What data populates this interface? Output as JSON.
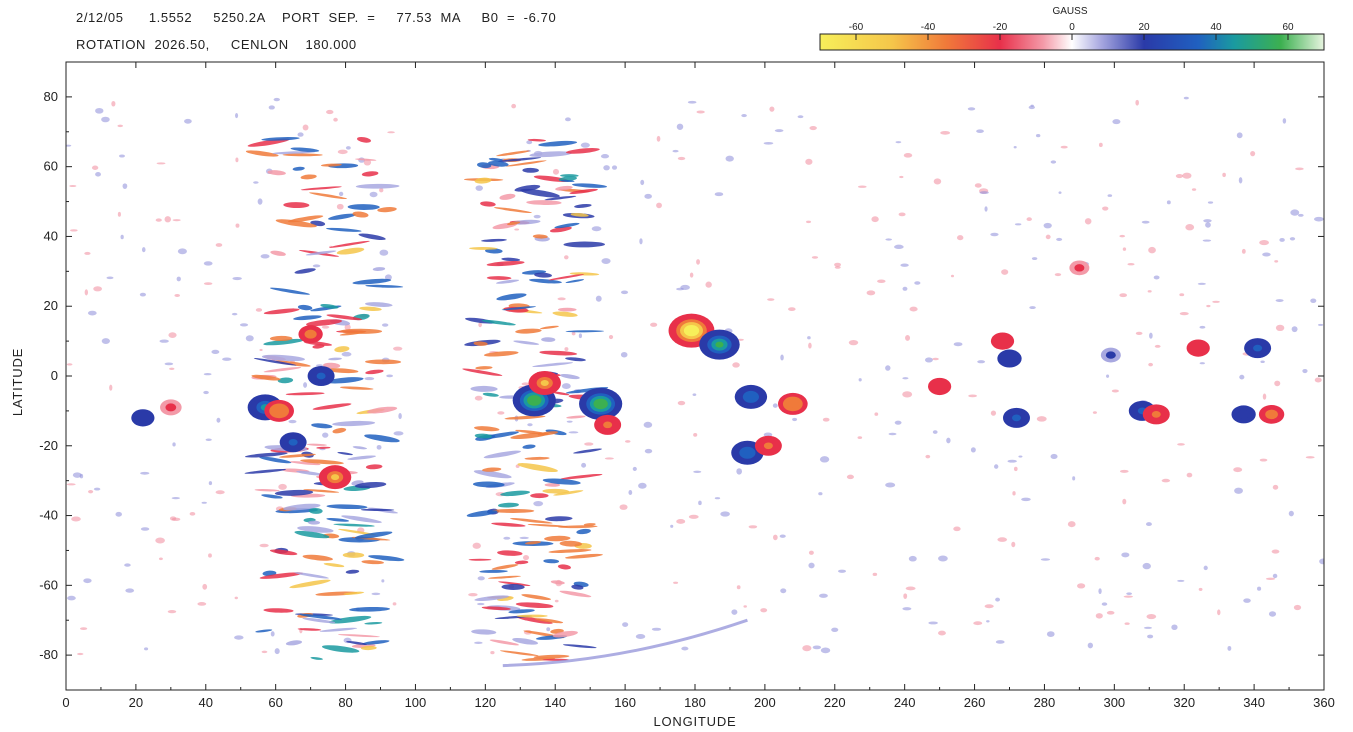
{
  "header": {
    "line1": "2/12/05      1.5552     5250.2A    PORT  SEP.  =     77.53  MA     B0  =  -6.70",
    "line2": "ROTATION  2026.50,     CENLON    180.000"
  },
  "colorbar": {
    "title": "GAUSS",
    "ticks": [
      -60,
      -40,
      -20,
      0,
      20,
      40,
      60
    ],
    "range": [
      -70,
      70
    ],
    "stops": [
      {
        "value": -70,
        "color": "#f7ef5a"
      },
      {
        "value": -50,
        "color": "#f5c64a"
      },
      {
        "value": -35,
        "color": "#f07a3a"
      },
      {
        "value": -20,
        "color": "#e8304a"
      },
      {
        "value": -8,
        "color": "#f39aa8"
      },
      {
        "value": 0,
        "color": "#ffffff"
      },
      {
        "value": 8,
        "color": "#a8a8e0"
      },
      {
        "value": 20,
        "color": "#2a3aa8"
      },
      {
        "value": 35,
        "color": "#2060c0"
      },
      {
        "value": 45,
        "color": "#1a9aa0"
      },
      {
        "value": 58,
        "color": "#3cb050"
      },
      {
        "value": 70,
        "color": "#e8f5e0"
      }
    ]
  },
  "chart_data": {
    "type": "heatmap",
    "xlabel": "LONGITUDE",
    "ylabel": "LATITUDE",
    "xlim": [
      0,
      360
    ],
    "ylim": [
      -90,
      90
    ],
    "xticks": [
      0,
      20,
      40,
      60,
      80,
      100,
      120,
      140,
      160,
      180,
      200,
      220,
      240,
      260,
      280,
      300,
      320,
      340,
      360
    ],
    "yticks": [
      -80,
      -60,
      -40,
      -20,
      0,
      20,
      40,
      60,
      80
    ],
    "missing_data_region": {
      "lon": [
        96,
        116
      ],
      "lat": [
        -90,
        90
      ]
    },
    "blobs": [
      {
        "lon": 179,
        "lat": 13,
        "value": -60
      },
      {
        "lon": 187,
        "lat": 9,
        "value": 50
      },
      {
        "lon": 153,
        "lat": -8,
        "value": 55
      },
      {
        "lon": 155,
        "lat": -14,
        "value": -25
      },
      {
        "lon": 134,
        "lat": -7,
        "value": 55
      },
      {
        "lon": 137,
        "lat": -2,
        "value": -35
      },
      {
        "lon": 196,
        "lat": -6,
        "value": 35
      },
      {
        "lon": 208,
        "lat": -8,
        "value": -30
      },
      {
        "lon": 195,
        "lat": -22,
        "value": 35
      },
      {
        "lon": 201,
        "lat": -20,
        "value": -25
      },
      {
        "lon": 57,
        "lat": -9,
        "value": 40
      },
      {
        "lon": 61,
        "lat": -10,
        "value": -30
      },
      {
        "lon": 65,
        "lat": -19,
        "value": 25
      },
      {
        "lon": 77,
        "lat": -29,
        "value": -35
      },
      {
        "lon": 73,
        "lat": 0,
        "value": 25
      },
      {
        "lon": 70,
        "lat": 12,
        "value": -20
      },
      {
        "lon": 272,
        "lat": -12,
        "value": 25
      },
      {
        "lon": 268,
        "lat": 10,
        "value": -18
      },
      {
        "lon": 250,
        "lat": -3,
        "value": -18
      },
      {
        "lon": 308,
        "lat": -10,
        "value": 25
      },
      {
        "lon": 312,
        "lat": -11,
        "value": -25
      },
      {
        "lon": 341,
        "lat": 8,
        "value": 25
      },
      {
        "lon": 324,
        "lat": 8,
        "value": -18
      },
      {
        "lon": 345,
        "lat": -11,
        "value": -22
      },
      {
        "lon": 337,
        "lat": -11,
        "value": 20
      },
      {
        "lon": 22,
        "lat": -12,
        "value": 18
      },
      {
        "lon": 30,
        "lat": -9,
        "value": -15
      },
      {
        "lon": 290,
        "lat": 31,
        "value": -12
      },
      {
        "lon": 299,
        "lat": 6,
        "value": 12
      },
      {
        "lon": 270,
        "lat": 5,
        "value": 20
      }
    ]
  }
}
